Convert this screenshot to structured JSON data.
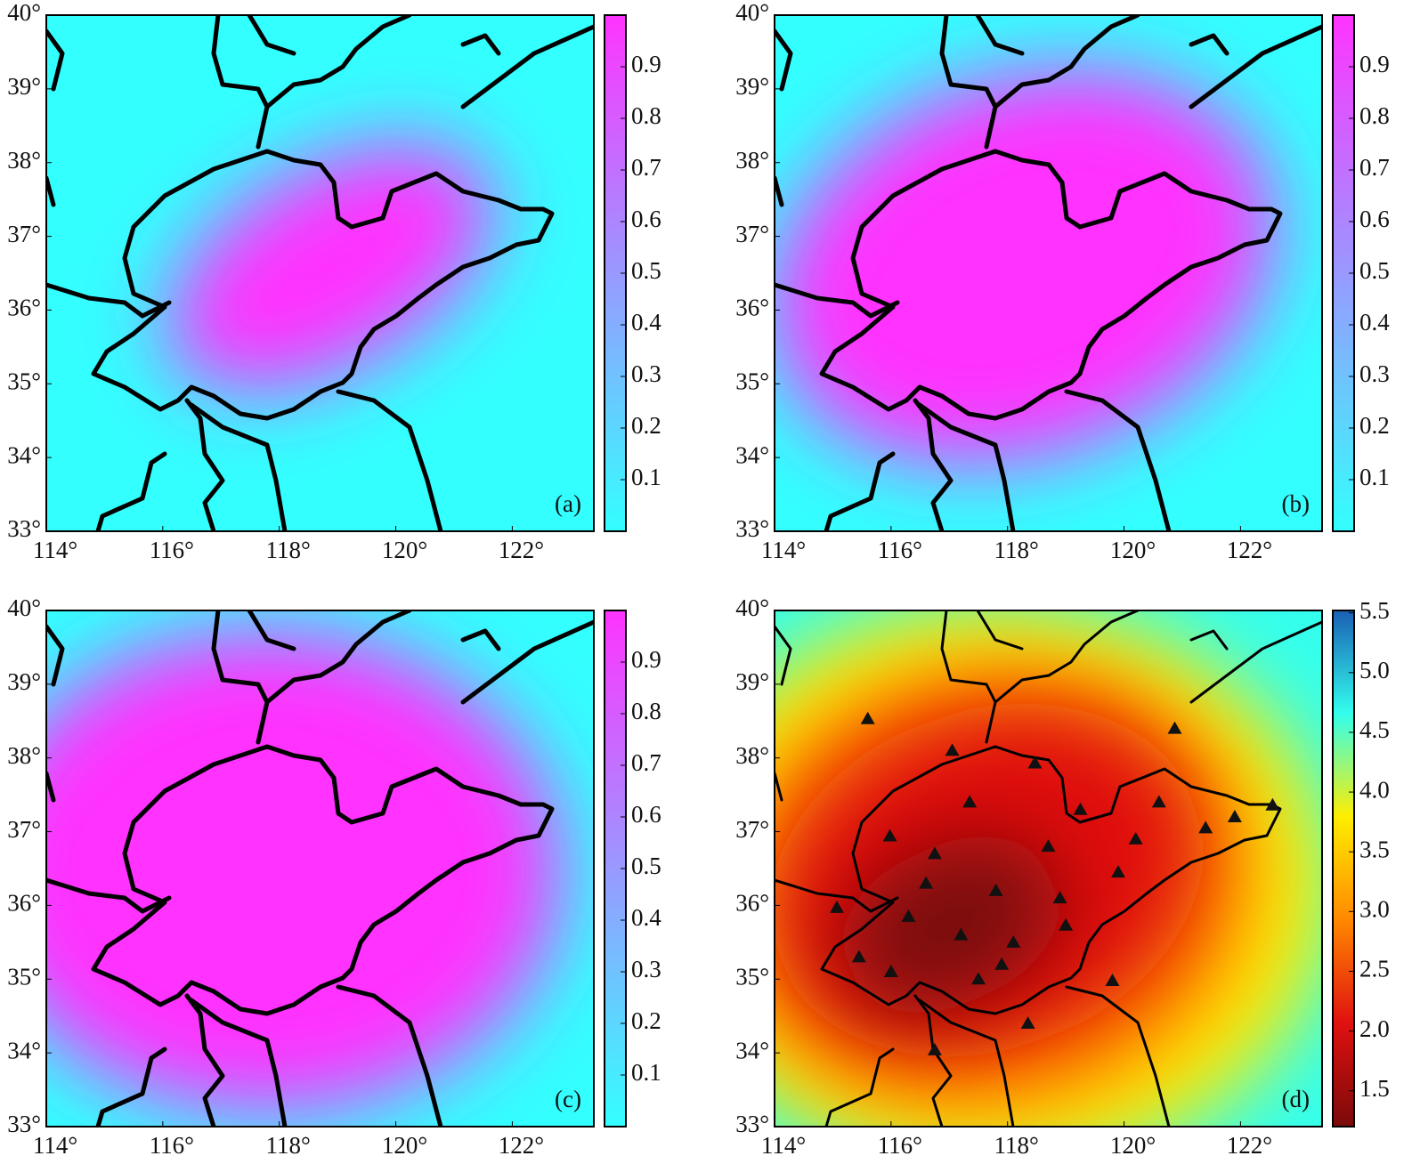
{
  "chart_data": [
    {
      "type": "map",
      "label": "(a)",
      "xlim": [
        114,
        123.4
      ],
      "ylim": [
        33,
        40
      ],
      "xticks": [
        {
          "value": 114,
          "label": "114°"
        },
        {
          "value": 116,
          "label": "116°"
        },
        {
          "value": 118,
          "label": "118°"
        },
        {
          "value": 120,
          "label": "120°"
        },
        {
          "value": 122,
          "label": "122°"
        }
      ],
      "yticks": [
        {
          "value": 33,
          "label": "33°"
        },
        {
          "value": 34,
          "label": "34°"
        },
        {
          "value": 35,
          "label": "35°"
        },
        {
          "value": 36,
          "label": "36°"
        },
        {
          "value": 37,
          "label": "37°"
        },
        {
          "value": 38,
          "label": "38°"
        },
        {
          "value": 39,
          "label": "39°"
        },
        {
          "value": 40,
          "label": "40°"
        }
      ],
      "colorbar": {
        "lim": [
          0,
          1
        ],
        "ticks": [
          0.1,
          0.2,
          0.3,
          0.4,
          0.5,
          0.6,
          0.7,
          0.8,
          0.9
        ],
        "colormap": [
          "#33ffff",
          "#ff33ff"
        ]
      }
    },
    {
      "type": "map",
      "label": "(b)",
      "xlim": [
        114,
        123.4
      ],
      "ylim": [
        33,
        40
      ],
      "xticks": [
        {
          "value": 114,
          "label": "114°"
        },
        {
          "value": 116,
          "label": "116°"
        },
        {
          "value": 118,
          "label": "118°"
        },
        {
          "value": 120,
          "label": "120°"
        },
        {
          "value": 122,
          "label": "122°"
        }
      ],
      "yticks": [
        {
          "value": 33,
          "label": "33°"
        },
        {
          "value": 34,
          "label": "34°"
        },
        {
          "value": 35,
          "label": "35°"
        },
        {
          "value": 36,
          "label": "36°"
        },
        {
          "value": 37,
          "label": "37°"
        },
        {
          "value": 38,
          "label": "38°"
        },
        {
          "value": 39,
          "label": "39°"
        },
        {
          "value": 40,
          "label": "40°"
        }
      ],
      "colorbar": {
        "lim": [
          0,
          1
        ],
        "ticks": [
          0.1,
          0.2,
          0.3,
          0.4,
          0.5,
          0.6,
          0.7,
          0.8,
          0.9
        ],
        "colormap": [
          "#33ffff",
          "#ff33ff"
        ]
      }
    },
    {
      "type": "map",
      "label": "(c)",
      "xlim": [
        114,
        123.4
      ],
      "ylim": [
        33,
        40
      ],
      "xticks": [
        {
          "value": 114,
          "label": "114°"
        },
        {
          "value": 116,
          "label": "116°"
        },
        {
          "value": 118,
          "label": "118°"
        },
        {
          "value": 120,
          "label": "120°"
        },
        {
          "value": 122,
          "label": "122°"
        }
      ],
      "yticks": [
        {
          "value": 33,
          "label": "33°"
        },
        {
          "value": 34,
          "label": "34°"
        },
        {
          "value": 35,
          "label": "35°"
        },
        {
          "value": 36,
          "label": "36°"
        },
        {
          "value": 37,
          "label": "37°"
        },
        {
          "value": 38,
          "label": "38°"
        },
        {
          "value": 39,
          "label": "39°"
        },
        {
          "value": 40,
          "label": "40°"
        }
      ],
      "colorbar": {
        "lim": [
          0,
          1
        ],
        "ticks": [
          0.1,
          0.2,
          0.3,
          0.4,
          0.5,
          0.6,
          0.7,
          0.8,
          0.9
        ],
        "colormap": [
          "#33ffff",
          "#ff33ff"
        ]
      }
    },
    {
      "type": "map",
      "label": "(d)",
      "xlim": [
        114,
        123.4
      ],
      "ylim": [
        33,
        40
      ],
      "xticks": [
        {
          "value": 114,
          "label": "114°"
        },
        {
          "value": 116,
          "label": "116°"
        },
        {
          "value": 118,
          "label": "118°"
        },
        {
          "value": 120,
          "label": "120°"
        },
        {
          "value": 122,
          "label": "122°"
        }
      ],
      "yticks": [
        {
          "value": 33,
          "label": "33°"
        },
        {
          "value": 34,
          "label": "34°"
        },
        {
          "value": 35,
          "label": "35°"
        },
        {
          "value": 36,
          "label": "36°"
        },
        {
          "value": 37,
          "label": "37°"
        },
        {
          "value": 38,
          "label": "38°"
        },
        {
          "value": 39,
          "label": "39°"
        },
        {
          "value": 40,
          "label": "40°"
        }
      ],
      "colorbar": {
        "lim": [
          1.2,
          5.52
        ],
        "ticks": [
          1.5,
          {
            "value": 2,
            "label": "2.0"
          },
          2.5,
          {
            "value": 3,
            "label": "3.0"
          },
          3.5,
          {
            "value": 4,
            "label": "4.0"
          },
          4.5,
          {
            "value": 5,
            "label": "5.0"
          },
          5.5
        ],
        "colormap": [
          "#7a0a0a",
          "#e01010",
          "#ff8800",
          "#ffee00",
          "#33ffee",
          "#1a5fb4"
        ]
      },
      "stations": {
        "color": "#111111",
        "x": [
          115.6,
          117.05,
          120.87,
          115.07,
          116.75,
          119.8,
          122.55,
          118.47,
          115.98,
          117.8,
          119.0,
          120.6,
          117.5,
          118.35,
          116.75,
          118.7,
          119.9,
          121.4,
          117.2,
          115.45,
          118.1,
          116.3,
          119.25,
          117.35,
          116.0,
          118.9,
          120.2,
          121.9,
          117.9,
          116.6
        ],
        "y": [
          38.53,
          38.1,
          38.4,
          35.97,
          34.04,
          34.98,
          37.36,
          37.93,
          36.94,
          36.2,
          35.73,
          37.4,
          35.0,
          34.4,
          36.7,
          36.8,
          36.45,
          37.05,
          35.6,
          35.3,
          35.5,
          35.85,
          37.3,
          37.4,
          35.1,
          36.1,
          36.9,
          37.2,
          35.2,
          36.3
        ]
      }
    }
  ]
}
